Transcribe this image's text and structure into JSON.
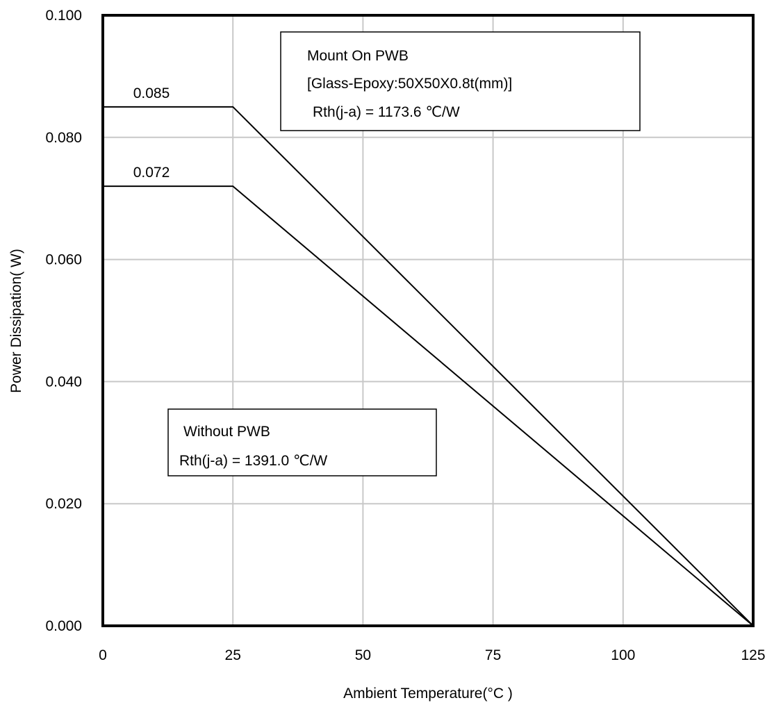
{
  "chart_data": {
    "type": "line",
    "xlabel": "Ambient Temperature(°C )",
    "ylabel": "Power Dissipation( W)",
    "xlim": [
      0,
      125
    ],
    "ylim": [
      0,
      0.1
    ],
    "grid": true,
    "x_ticks": [
      0,
      25,
      50,
      75,
      100,
      125
    ],
    "x_tick_labels": [
      "0",
      "25",
      "50",
      "75",
      "100",
      "125"
    ],
    "y_ticks": [
      0,
      0.02,
      0.04,
      0.06,
      0.08,
      0.1
    ],
    "y_tick_labels": [
      "0.000",
      "0.020",
      "0.040",
      "0.060",
      "0.080",
      "0.100"
    ],
    "series": [
      {
        "x": [
          0,
          25,
          125
        ],
        "y": [
          0.085,
          0.085,
          0
        ]
      },
      {
        "x": [
          0,
          25,
          125
        ],
        "y": [
          0.072,
          0.072,
          0
        ]
      }
    ],
    "data_labels": [
      "0.085",
      "0.072"
    ],
    "annotations": [
      {
        "lines": [
          "Mount On PWB",
          "[Glass-Epoxy:50X50X0.8t(mm)]",
          "Rth(j-a)  =  1173.6 ℃/W"
        ]
      },
      {
        "lines": [
          "Without PWB",
          "Rth(j-a)  =  1391.0 ℃/W"
        ]
      }
    ]
  }
}
